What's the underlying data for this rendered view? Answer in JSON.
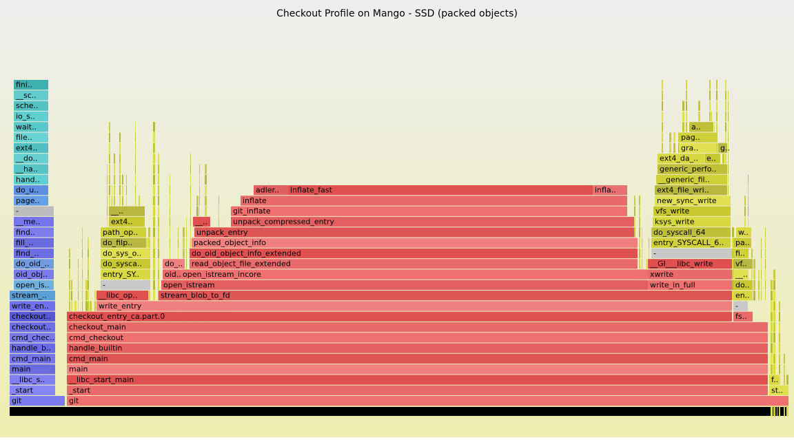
{
  "title": "Checkout Profile on Mango - SSD (packed objects)",
  "frames": [
    {
      "label": "git"
    },
    {
      "label": "_start"
    },
    {
      "label": "__libc_s.."
    },
    {
      "label": "main"
    },
    {
      "label": "cmd_main"
    },
    {
      "label": "handle_b.."
    },
    {
      "label": "cmd_chec.."
    },
    {
      "label": "checkout.."
    },
    {
      "label": "checkout.."
    },
    {
      "label": "write_en.."
    },
    {
      "label": "stream_.."
    },
    {
      "label": "open_is.."
    },
    {
      "label": "oid_obj.."
    },
    {
      "label": "do_oid_.."
    },
    {
      "label": "find_.."
    },
    {
      "label": "fill_.."
    },
    {
      "label": "find.."
    },
    {
      "label": "__me.."
    },
    {
      "label": "-"
    },
    {
      "label": "page.."
    },
    {
      "label": "do_u.."
    },
    {
      "label": "hand.."
    },
    {
      "label": "__ha.."
    },
    {
      "label": "__do.."
    },
    {
      "label": "ext4.."
    },
    {
      "label": "file.."
    },
    {
      "label": "wait.."
    },
    {
      "label": "io_s.."
    },
    {
      "label": "sche.."
    },
    {
      "label": "__sc.."
    },
    {
      "label": "fini.."
    },
    {
      "label": "git"
    },
    {
      "label": "_start"
    },
    {
      "label": "__libc_start_main"
    },
    {
      "label": "main"
    },
    {
      "label": "cmd_main"
    },
    {
      "label": "handle_builtin"
    },
    {
      "label": "cmd_checkout"
    },
    {
      "label": "checkout_main"
    },
    {
      "label": "checkout_entry_ca.part.0"
    },
    {
      "label": "write_entry"
    },
    {
      "label": "stream_blob_to_fd"
    },
    {
      "label": "open_istream"
    },
    {
      "label": "open_istream_incore"
    },
    {
      "label": "read_object_file_extended"
    },
    {
      "label": "do_oid_object_info_extended"
    },
    {
      "label": "packed_object_info"
    },
    {
      "label": "unpack_entry"
    },
    {
      "label": "unpack_compressed_entry"
    },
    {
      "label": "git_inflate"
    },
    {
      "label": "inflate"
    },
    {
      "label": "adler.."
    },
    {
      "label": "inflate_fast"
    },
    {
      "label": "infla.."
    },
    {
      "label": "write_in_full"
    },
    {
      "label": "xwrite"
    },
    {
      "label": "__GI___libc_write"
    },
    {
      "label": "-"
    },
    {
      "label": "entry_SYSCALL_6.."
    },
    {
      "label": "do_syscall_64"
    },
    {
      "label": "ksys_write"
    },
    {
      "label": "vfs_write"
    },
    {
      "label": "new_sync_write"
    },
    {
      "label": "ext4_file_wri.."
    },
    {
      "label": "__generic_fil.."
    },
    {
      "label": "generic_perfo.."
    },
    {
      "label": "ext4_da_.."
    },
    {
      "label": "e.."
    },
    {
      "label": "gra.."
    },
    {
      "label": "g.."
    },
    {
      "label": "pag.."
    },
    {
      "label": "a.."
    },
    {
      "label": "fs.."
    },
    {
      "label": "-"
    },
    {
      "label": "en.."
    },
    {
      "label": "do.."
    },
    {
      "label": "__.."
    },
    {
      "label": "vf.."
    },
    {
      "label": "fi.."
    },
    {
      "label": "pa.."
    },
    {
      "label": "w.."
    },
    {
      "label": "f.."
    },
    {
      "label": "st.."
    },
    {
      "label": "__libc_op.."
    },
    {
      "label": "-"
    },
    {
      "label": "entry_SY.."
    },
    {
      "label": "do_sysca.."
    },
    {
      "label": "do_sys_o.."
    },
    {
      "label": "do_filp.."
    },
    {
      "label": "path_op.."
    },
    {
      "label": "ext4.."
    },
    {
      "label": "__.."
    },
    {
      "label": "oid.."
    },
    {
      "label": "do_.."
    },
    {
      "label": "__.."
    }
  ]
}
